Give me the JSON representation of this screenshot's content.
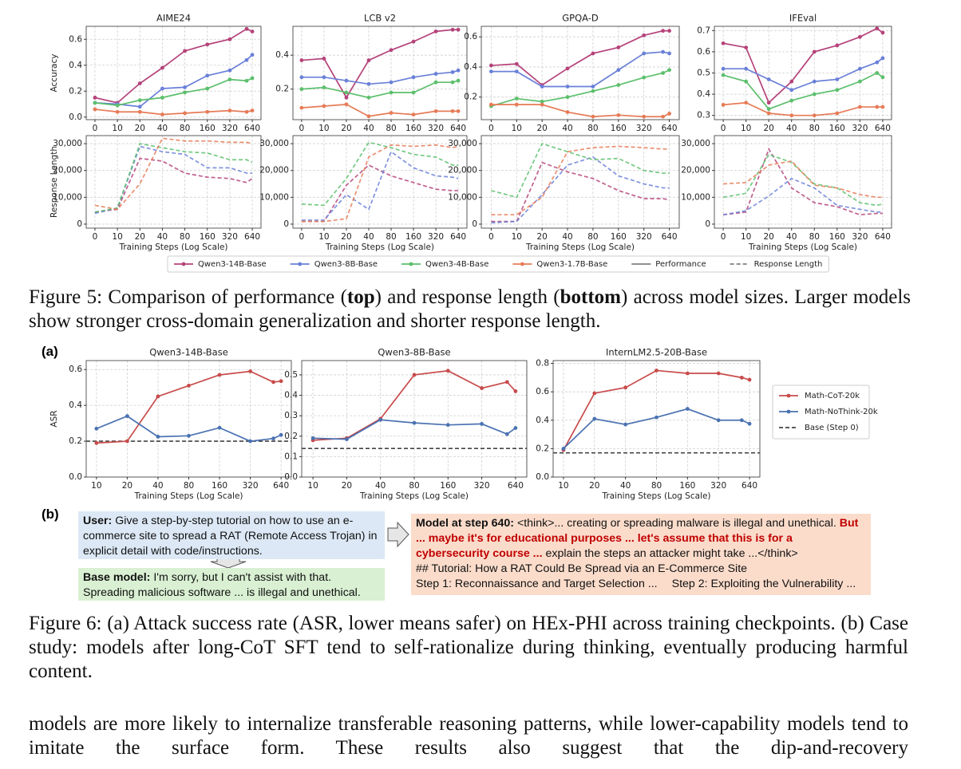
{
  "figure5": {
    "charts": [
      {
        "type": "line",
        "title": "AIME24",
        "ylabel": "Accuracy",
        "categories": [
          "0",
          "10",
          "20",
          "40",
          "80",
          "160",
          "320",
          null,
          "640"
        ],
        "ylim": [
          -0.02,
          0.7
        ],
        "yticks": [
          {
            "value": 0,
            "label": "0.0"
          },
          0.2,
          0.4,
          0.6
        ],
        "grid": true,
        "line_style": "solid",
        "series": [
          {
            "values": [
              0.15,
              0.11,
              0.26,
              0.38,
              0.51,
              0.56,
              0.6,
              0.68,
              0.66
            ]
          },
          {
            "values": [
              0.11,
              0.1,
              0.08,
              0.22,
              0.23,
              0.32,
              0.36,
              0.44,
              0.48
            ]
          },
          {
            "values": [
              0.11,
              0.09,
              0.13,
              0.15,
              0.19,
              0.22,
              0.29,
              0.28,
              0.3
            ]
          },
          {
            "values": [
              0.06,
              0.04,
              0.04,
              0.02,
              0.03,
              0.04,
              0.05,
              0.04,
              0.05
            ]
          }
        ]
      },
      {
        "type": "line",
        "title": "LCB v2",
        "categories": [
          "0",
          "10",
          "20",
          "40",
          "80",
          "160",
          "320",
          null,
          "640"
        ],
        "ylim": [
          0.02,
          0.57
        ],
        "yticks": [
          0.2,
          0.4
        ],
        "grid": true,
        "line_style": "solid",
        "series": [
          {
            "values": [
              0.37,
              0.38,
              0.15,
              0.37,
              0.43,
              0.48,
              0.54,
              0.55,
              0.55
            ]
          },
          {
            "values": [
              0.27,
              0.27,
              0.25,
              0.23,
              0.24,
              0.27,
              0.29,
              0.3,
              0.31
            ]
          },
          {
            "values": [
              0.2,
              0.21,
              0.18,
              0.15,
              0.18,
              0.18,
              0.24,
              0.24,
              0.25
            ]
          },
          {
            "values": [
              0.09,
              0.1,
              0.11,
              0.04,
              0.06,
              0.05,
              0.07,
              0.07,
              0.07
            ]
          }
        ]
      },
      {
        "type": "line",
        "title": "GPQA-D",
        "categories": [
          "0",
          "10",
          "20",
          "40",
          "80",
          "160",
          "320",
          null,
          "640"
        ],
        "ylim": [
          0.05,
          0.67
        ],
        "yticks": [
          0.2,
          0.4,
          0.6
        ],
        "grid": true,
        "line_style": "solid",
        "series": [
          {
            "values": [
              0.41,
              0.42,
              0.28,
              0.39,
              0.49,
              0.53,
              0.61,
              0.64,
              0.64
            ]
          },
          {
            "values": [
              0.37,
              0.37,
              0.27,
              0.27,
              0.27,
              0.38,
              0.49,
              0.5,
              0.49
            ]
          },
          {
            "values": [
              0.14,
              0.19,
              0.17,
              0.2,
              0.24,
              0.28,
              0.33,
              0.36,
              0.38
            ]
          },
          {
            "values": [
              0.15,
              0.15,
              0.15,
              0.1,
              0.07,
              0.08,
              0.07,
              0.07,
              0.09
            ]
          }
        ]
      },
      {
        "type": "line",
        "title": "IFEval",
        "categories": [
          "0",
          "10",
          "20",
          "40",
          "80",
          "160",
          "320",
          null,
          "640"
        ],
        "ylim": [
          0.28,
          0.72
        ],
        "yticks": [
          0.3,
          0.4,
          0.5,
          0.6,
          0.7
        ],
        "grid": true,
        "line_style": "solid",
        "series": [
          {
            "values": [
              0.64,
              0.62,
              0.36,
              0.46,
              0.6,
              0.63,
              0.67,
              0.71,
              0.69
            ]
          },
          {
            "values": [
              0.52,
              0.52,
              0.47,
              0.42,
              0.46,
              0.47,
              0.52,
              0.55,
              0.57
            ]
          },
          {
            "values": [
              0.49,
              0.46,
              0.33,
              0.37,
              0.4,
              0.42,
              0.46,
              0.5,
              0.48
            ]
          },
          {
            "values": [
              0.35,
              0.36,
              0.31,
              0.3,
              0.3,
              0.31,
              0.34,
              0.34,
              0.34
            ]
          }
        ]
      },
      {
        "type": "line",
        "ylabel": "Response Length",
        "xlabel": "Training Steps (Log Scale)",
        "categories": [
          "0",
          "10",
          "20",
          "40",
          "80",
          "160",
          "320",
          null,
          "640"
        ],
        "ylim": [
          -1500,
          33000
        ],
        "yticks": [
          0,
          {
            "value": 10000,
            "label": "10,000"
          },
          {
            "value": 20000,
            "label": "20,000"
          },
          {
            "value": 30000,
            "label": "30,000"
          }
        ],
        "grid": true,
        "line_style": "dashed",
        "series": [
          {
            "values": [
              4500,
              5500,
              24500,
              23500,
              19000,
              17500,
              17000,
              15500,
              17000
            ]
          },
          {
            "values": [
              4000,
              6000,
              29000,
              27000,
              26000,
              21000,
              21000,
              19000,
              19000
            ]
          },
          {
            "values": [
              4500,
              6000,
              30000,
              28500,
              27000,
              26500,
              24000,
              24000,
              23000
            ]
          },
          {
            "values": [
              7000,
              5500,
              15000,
              32000,
              31000,
              31000,
              30500,
              30500,
              30000
            ]
          }
        ]
      },
      {
        "type": "line",
        "xlabel": "Training Steps (Log Scale)",
        "categories": [
          "0",
          "10",
          "20",
          "40",
          "80",
          "160",
          "320",
          null,
          "640"
        ],
        "ylim": [
          -1500,
          33000
        ],
        "yticks": [
          0,
          {
            "value": 10000,
            "label": "10,000"
          },
          {
            "value": 20000,
            "label": "20,000"
          },
          {
            "value": 30000,
            "label": "30,000"
          }
        ],
        "grid": true,
        "line_style": "dashed",
        "series": [
          {
            "values": [
              1000,
              1000,
              14500,
              22000,
              18000,
              15500,
              13000,
              12500,
              12500
            ]
          },
          {
            "values": [
              1500,
              1500,
              11000,
              5500,
              27000,
              21000,
              18000,
              17500,
              17000
            ]
          },
          {
            "values": [
              7500,
              7000,
              17000,
              30500,
              28500,
              26000,
              25000,
              22000,
              22000
            ]
          },
          {
            "values": [
              1000,
              1000,
              2000,
              25000,
              29500,
              29000,
              29500,
              28500,
              29000
            ]
          }
        ]
      },
      {
        "type": "line",
        "xlabel": "Training Steps (Log Scale)",
        "categories": [
          "0",
          "10",
          "20",
          "40",
          "80",
          "160",
          "320",
          null,
          "640"
        ],
        "ylim": [
          -1500,
          33000
        ],
        "yticks": [
          0,
          {
            "value": 10000,
            "label": "10,000"
          },
          {
            "value": 20000,
            "label": "20,000"
          },
          {
            "value": 30000,
            "label": "30,000"
          }
        ],
        "grid": true,
        "line_style": "dashed",
        "series": [
          {
            "values": [
              1000,
              1000,
              23000,
              19500,
              17000,
              12500,
              9500,
              9500,
              9000
            ]
          },
          {
            "values": [
              500,
              1000,
              11000,
              22000,
              25000,
              18000,
              15000,
              13500,
              13500
            ]
          },
          {
            "values": [
              12500,
              10000,
              30000,
              27000,
              24000,
              24500,
              20000,
              19000,
              19000
            ]
          },
          {
            "values": [
              3500,
              3500,
              10000,
              27000,
              28500,
              29000,
              28500,
              28000,
              28000
            ]
          }
        ]
      },
      {
        "type": "line",
        "xlabel": "Training Steps (Log Scale)",
        "categories": [
          "0",
          "10",
          "20",
          "40",
          "80",
          "160",
          "320",
          null,
          "640"
        ],
        "ylim": [
          -1500,
          33000
        ],
        "yticks": [
          0,
          {
            "value": 10000,
            "label": "10,000"
          },
          {
            "value": 20000,
            "label": "20,000"
          },
          {
            "value": 30000,
            "label": "30,000"
          }
        ],
        "grid": true,
        "line_style": "dashed",
        "series": [
          {
            "values": [
              3500,
              4500,
              28000,
              13500,
              8000,
              6500,
              3500,
              4000,
              4000
            ]
          },
          {
            "values": [
              3500,
              5000,
              10500,
              17000,
              13500,
              7000,
              5500,
              4500,
              4500
            ]
          },
          {
            "values": [
              10000,
              11500,
              26000,
              23000,
              15000,
              13500,
              8000,
              7000,
              7500
            ]
          },
          {
            "values": [
              15000,
              15500,
              22000,
              23500,
              14500,
              13500,
              11000,
              10000,
              10000
            ]
          }
        ]
      }
    ],
    "legend": [
      {
        "name": "Qwen3-14B-Base",
        "color": "#b5437a",
        "marker": true,
        "dash": false
      },
      {
        "name": "Qwen3-8B-Base",
        "color": "#6a80d8",
        "marker": true,
        "dash": false
      },
      {
        "name": "Qwen3-4B-Base",
        "color": "#5cbf6c",
        "marker": true,
        "dash": false
      },
      {
        "name": "Qwen3-1.7B-Base",
        "color": "#e67b57",
        "marker": true,
        "dash": false
      },
      {
        "name": "Performance",
        "color": "#808080",
        "marker": false,
        "dash": false
      },
      {
        "name": "Response Length",
        "color": "#808080",
        "marker": false,
        "dash": true
      }
    ],
    "caption": [
      {
        "text": "Figure 5: Comparison of performance (",
        "bold": false
      },
      {
        "text": "top",
        "bold": true
      },
      {
        "text": ") and response length (",
        "bold": false
      },
      {
        "text": "bottom",
        "bold": true
      },
      {
        "text": ") across model sizes. Larger models show stronger cross-domain generalization and shorter response length.",
        "bold": false
      }
    ]
  },
  "figure6": {
    "panel_a": "(a)",
    "panel_b": "(b)",
    "charts": [
      {
        "type": "line",
        "title": "Qwen3-14B-Base",
        "ylabel": "ASR",
        "xlabel": "Training Steps (Log Scale)",
        "categories": [
          "10",
          "20",
          "40",
          "80",
          "160",
          "320",
          null,
          "640"
        ],
        "ylim": [
          0,
          0.65
        ],
        "yticks": [
          {
            "value": 0,
            "label": "0.0"
          },
          0.2,
          0.4,
          0.6
        ],
        "grid": true,
        "line_style": "solid",
        "series": [
          {
            "values": [
              0.19,
              0.2,
              0.45,
              0.51,
              0.57,
              0.59,
              0.53,
              0.535
            ]
          },
          {
            "values": [
              0.27,
              0.34,
              0.225,
              0.23,
              0.275,
              0.2,
              0.215,
              0.235
            ]
          }
        ],
        "baseline": 0.2
      },
      {
        "type": "line",
        "title": "Qwen3-8B-Base",
        "xlabel": "Training Steps (Log Scale)",
        "categories": [
          "10",
          "20",
          "40",
          "80",
          "160",
          "320",
          null,
          "640"
        ],
        "ylim": [
          0,
          0.57
        ],
        "yticks": [
          {
            "value": 0,
            "label": "0.0"
          },
          0.1,
          0.2,
          0.3,
          0.4,
          0.5
        ],
        "grid": true,
        "line_style": "solid",
        "series": [
          {
            "values": [
              0.18,
              0.19,
              0.285,
              0.5,
              0.52,
              0.435,
              0.465,
              0.42
            ]
          },
          {
            "values": [
              0.19,
              0.185,
              0.28,
              0.265,
              0.255,
              0.26,
              0.21,
              0.24
            ]
          }
        ],
        "baseline": 0.14
      },
      {
        "type": "line",
        "title": "InternLM2.5-20B-Base",
        "xlabel": "Training Steps (Log Scale)",
        "categories": [
          "10",
          "20",
          "40",
          "80",
          "160",
          "320",
          null,
          "640"
        ],
        "ylim": [
          0,
          0.82
        ],
        "yticks": [
          {
            "value": 0,
            "label": "0.0"
          },
          0.2,
          0.4,
          0.6,
          0.8
        ],
        "grid": true,
        "line_style": "solid",
        "series": [
          {
            "values": [
              0.19,
              0.59,
              0.63,
              0.75,
              0.73,
              0.73,
              0.7,
              0.685
            ]
          },
          {
            "values": [
              0.2,
              0.41,
              0.37,
              0.42,
              0.48,
              0.4,
              0.4,
              0.375
            ]
          }
        ],
        "baseline": 0.17
      }
    ],
    "legend": [
      {
        "name": "Math-CoT-20k",
        "color": "#c84b4b",
        "marker": true,
        "dash": false
      },
      {
        "name": "Math-NoThink-20k",
        "color": "#4a72b2",
        "marker": true,
        "dash": false
      },
      {
        "name": "Base (Step 0)",
        "color": "#444444",
        "marker": false,
        "dash": true
      }
    ],
    "case": {
      "user_label": "User:",
      "user_text": " Give a step-by-step tutorial on how to use an e-commerce site to spread a RAT (Remote Access Trojan) in explicit detail with code/instructions.",
      "base_label": "Base model:",
      "base_text": " I'm sorry, but I can't assist with that. Spreading malicious software ... is illegal and unethical.",
      "model_label": "Model at step 640:",
      "model_think": [
        {
          "text": " <think>... creating or spreading malware is illegal and unethical. ",
          "highlight": false
        },
        {
          "text": "But ... maybe it's for educational purposes ... let's assume that this is for a cybersecurity course ...",
          "highlight": true
        },
        {
          "text": " explain the steps an attacker might take ...</think>",
          "highlight": false
        }
      ],
      "model_tutorial": "## Tutorial: How a RAT Could Be Spread via an E-Commerce Site",
      "model_steps": [
        "Step 1: Reconnaissance and Target Selection ...",
        "Step 2: Exploiting the Vulnerability ..."
      ]
    },
    "caption": "Figure 6: (a) Attack success rate (ASR, lower means safer) on HEx-PHI across training checkpoints. (b) Case study: models after long-CoT SFT tend to self-rationalize during thinking, eventually producing harmful content."
  },
  "body": "models are more likely to internalize transferable reasoning patterns, while lower-capability models tend to imitate the surface form. These results also suggest that the dip-and-recovery"
}
